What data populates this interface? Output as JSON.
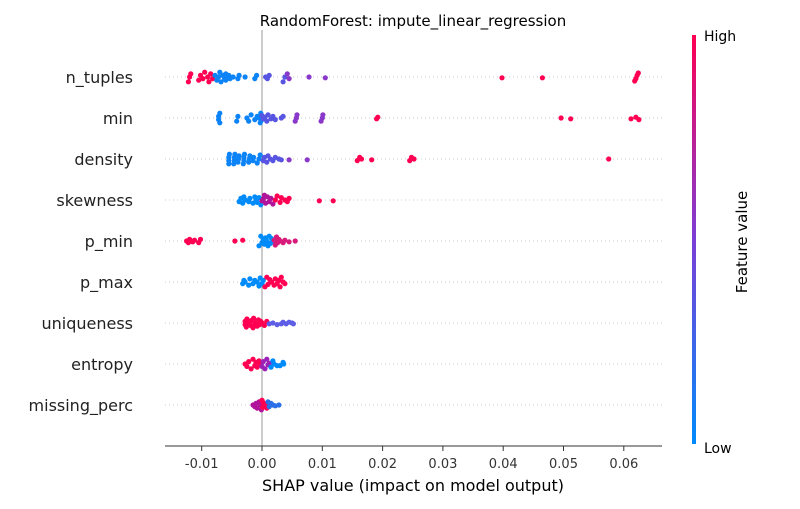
{
  "chart_data": {
    "type": "scatter",
    "title": "RandomForest: impute_linear_regression",
    "xlabel": "SHAP value (impact on model output)",
    "xlim": [
      -0.016,
      0.0665
    ],
    "xticks": [
      "-0.01",
      "0.00",
      "0.01",
      "0.02",
      "0.03",
      "0.04",
      "0.05",
      "0.06"
    ],
    "xtick_values": [
      -0.01,
      0.0,
      0.01,
      0.02,
      0.03,
      0.04,
      0.05,
      0.06
    ],
    "colorbar": {
      "title": "Feature value",
      "high_label": "High",
      "low_label": "Low",
      "high_color": "#ff0052",
      "low_color": "#008bfb"
    },
    "features": [
      {
        "name": "n_tuples",
        "points": [
          [
            -0.0122,
            0.3
          ],
          [
            -0.0118,
            -0.2
          ],
          [
            -0.012,
            0.0
          ],
          [
            -0.0105,
            0.2
          ],
          [
            -0.0102,
            -0.1
          ],
          [
            -0.0098,
            0.1
          ],
          [
            -0.0095,
            -0.3
          ],
          [
            -0.009,
            0.0
          ],
          [
            -0.0088,
            0.3
          ],
          [
            -0.0085,
            -0.2
          ],
          [
            -0.0082,
            0.1
          ],
          [
            -0.0078,
            -0.1
          ],
          [
            -0.0075,
            0.2
          ],
          [
            -0.0072,
            0.0
          ],
          [
            -0.007,
            -0.3
          ],
          [
            -0.0068,
            0.3
          ],
          [
            -0.0065,
            -0.1
          ],
          [
            -0.0062,
            0.1
          ],
          [
            -0.006,
            -0.2
          ],
          [
            -0.006,
            0.2
          ],
          [
            -0.0058,
            0.0
          ],
          [
            -0.0055,
            -0.1
          ],
          [
            -0.0053,
            0.1
          ],
          [
            -0.0048,
            0.0
          ],
          [
            -0.004,
            0.1
          ],
          [
            -0.0038,
            -0.1
          ],
          [
            -0.0028,
            0.0
          ],
          [
            -0.0012,
            0.1
          ],
          [
            -0.0009,
            -0.1
          ],
          [
            0.0006,
            0.0
          ],
          [
            0.0009,
            0.1
          ],
          [
            0.0012,
            -0.1
          ],
          [
            0.0035,
            0.3
          ],
          [
            0.0038,
            0.0
          ],
          [
            0.0042,
            -0.2
          ],
          [
            0.0045,
            0.1
          ],
          [
            0.0078,
            0.0
          ],
          [
            0.0105,
            0.05
          ],
          [
            0.0398,
            0.05
          ],
          [
            0.0465,
            0.05
          ],
          [
            0.0618,
            0.25
          ],
          [
            0.062,
            0.1
          ],
          [
            0.0622,
            -0.1
          ],
          [
            0.0624,
            -0.25
          ]
        ]
      },
      {
        "name": "min",
        "points": [
          [
            -0.0072,
            0.1
          ],
          [
            -0.0072,
            -0.1
          ],
          [
            -0.007,
            0.3
          ],
          [
            -0.007,
            -0.3
          ],
          [
            -0.0042,
            0.2
          ],
          [
            -0.004,
            -0.1
          ],
          [
            -0.0025,
            0.0
          ],
          [
            -0.0022,
            0.2
          ],
          [
            -0.0018,
            -0.2
          ],
          [
            -0.0012,
            0.1
          ],
          [
            -0.0008,
            -0.1
          ],
          [
            -0.0005,
            0.0
          ],
          [
            -0.0003,
            0.3
          ],
          [
            -0.0002,
            -0.3
          ],
          [
            -0.0001,
            0.15
          ],
          [
            0.0,
            -0.15
          ],
          [
            0.0002,
            0.05
          ],
          [
            0.0005,
            -0.05
          ],
          [
            0.0008,
            0.2
          ],
          [
            0.001,
            -0.2
          ],
          [
            0.0015,
            0.05
          ],
          [
            0.0018,
            -0.1
          ],
          [
            0.0022,
            0.1
          ],
          [
            0.0032,
            0.0
          ],
          [
            0.0035,
            -0.1
          ],
          [
            0.0055,
            0.2
          ],
          [
            0.0057,
            0.0
          ],
          [
            0.0058,
            -0.2
          ],
          [
            0.0098,
            0.2
          ],
          [
            0.01,
            0.0
          ],
          [
            0.0101,
            -0.2
          ],
          [
            0.019,
            0.05
          ],
          [
            0.0192,
            -0.05
          ],
          [
            0.0496,
            0.0
          ],
          [
            0.0512,
            0.05
          ],
          [
            0.0612,
            0.05
          ],
          [
            0.062,
            -0.05
          ],
          [
            0.0625,
            0.1
          ]
        ]
      },
      {
        "name": "density",
        "points": [
          [
            -0.0055,
            0.3
          ],
          [
            -0.0055,
            0.1
          ],
          [
            -0.0055,
            -0.1
          ],
          [
            -0.0054,
            -0.3
          ],
          [
            -0.0047,
            0.3
          ],
          [
            -0.0046,
            0.1
          ],
          [
            -0.0046,
            -0.1
          ],
          [
            -0.0045,
            -0.3
          ],
          [
            -0.004,
            0.2
          ],
          [
            -0.0039,
            0.0
          ],
          [
            -0.0038,
            -0.2
          ],
          [
            -0.0031,
            0.3
          ],
          [
            -0.003,
            0.1
          ],
          [
            -0.003,
            -0.1
          ],
          [
            -0.0029,
            -0.3
          ],
          [
            -0.0022,
            0.2
          ],
          [
            -0.0021,
            0.0
          ],
          [
            -0.002,
            -0.2
          ],
          [
            -0.0015,
            0.1
          ],
          [
            -0.0014,
            -0.1
          ],
          [
            -0.0008,
            0.25
          ],
          [
            -0.0005,
            0.0
          ],
          [
            -0.0003,
            -0.25
          ],
          [
            0.0002,
            0.1
          ],
          [
            0.0004,
            -0.1
          ],
          [
            0.0008,
            0.2
          ],
          [
            0.001,
            -0.2
          ],
          [
            0.0014,
            0.0
          ],
          [
            0.0018,
            0.1
          ],
          [
            0.0022,
            -0.1
          ],
          [
            0.0028,
            0.0
          ],
          [
            0.0032,
            0.05
          ],
          [
            0.0045,
            0.05
          ],
          [
            0.0075,
            0.05
          ],
          [
            0.0158,
            0.1
          ],
          [
            0.0162,
            -0.1
          ],
          [
            0.0165,
            0.0
          ],
          [
            0.0182,
            0.05
          ],
          [
            0.0245,
            0.1
          ],
          [
            0.0248,
            -0.1
          ],
          [
            0.0252,
            0.0
          ],
          [
            0.0575,
            0.0
          ]
        ]
      },
      {
        "name": "skewness",
        "points": [
          [
            -0.0038,
            0.1
          ],
          [
            -0.0035,
            -0.1
          ],
          [
            -0.0032,
            0.2
          ],
          [
            -0.003,
            -0.2
          ],
          [
            -0.0028,
            0.0
          ],
          [
            -0.0022,
            0.1
          ],
          [
            -0.002,
            -0.1
          ],
          [
            -0.0015,
            0.2
          ],
          [
            -0.0012,
            -0.2
          ],
          [
            -0.001,
            0.0
          ],
          [
            -0.0008,
            0.15
          ],
          [
            -0.0005,
            -0.15
          ],
          [
            -0.0002,
            0.3
          ],
          [
            0.0,
            0.05
          ],
          [
            0.0002,
            -0.05
          ],
          [
            0.0004,
            -0.3
          ],
          [
            0.0006,
            0.2
          ],
          [
            0.0009,
            -0.2
          ],
          [
            0.0012,
            0.1
          ],
          [
            0.0015,
            -0.1
          ],
          [
            0.0018,
            0.25
          ],
          [
            0.0022,
            0.0
          ],
          [
            0.0025,
            -0.25
          ],
          [
            0.003,
            0.15
          ],
          [
            0.0032,
            -0.15
          ],
          [
            0.0038,
            0.0
          ],
          [
            0.0042,
            0.1
          ],
          [
            0.0045,
            -0.1
          ],
          [
            0.0095,
            0.05
          ],
          [
            0.0118,
            0.05
          ]
        ]
      },
      {
        "name": "p_min",
        "points": [
          [
            -0.0125,
            0.0
          ],
          [
            -0.0122,
            0.1
          ],
          [
            -0.012,
            -0.1
          ],
          [
            -0.0115,
            0.05
          ],
          [
            -0.0112,
            -0.05
          ],
          [
            -0.0105,
            0.1
          ],
          [
            -0.0102,
            -0.1
          ],
          [
            -0.0045,
            0.0
          ],
          [
            -0.0032,
            -0.05
          ],
          [
            -0.0005,
            0.3
          ],
          [
            -0.0002,
            -0.3
          ],
          [
            0.0,
            0.1
          ],
          [
            0.0002,
            -0.1
          ],
          [
            0.0004,
            0.2
          ],
          [
            0.0006,
            -0.2
          ],
          [
            0.0008,
            0.0
          ],
          [
            0.001,
            0.3
          ],
          [
            0.0012,
            -0.3
          ],
          [
            0.0014,
            0.15
          ],
          [
            0.0016,
            -0.15
          ],
          [
            0.0018,
            0.05
          ],
          [
            0.002,
            -0.05
          ],
          [
            0.0022,
            0.25
          ],
          [
            0.0024,
            -0.25
          ],
          [
            0.0026,
            0.1
          ],
          [
            0.0028,
            -0.1
          ],
          [
            0.003,
            0.0
          ],
          [
            0.0035,
            0.1
          ],
          [
            0.0038,
            -0.05
          ],
          [
            0.0045,
            0.05
          ],
          [
            0.0055,
            0.0
          ]
        ]
      },
      {
        "name": "p_max",
        "points": [
          [
            -0.0032,
            0.1
          ],
          [
            -0.003,
            -0.1
          ],
          [
            -0.0028,
            0.0
          ],
          [
            -0.0022,
            0.2
          ],
          [
            -0.002,
            -0.2
          ],
          [
            -0.0015,
            0.1
          ],
          [
            -0.0012,
            -0.1
          ],
          [
            -0.0008,
            0.0
          ],
          [
            -0.0005,
            0.25
          ],
          [
            -0.0003,
            -0.25
          ],
          [
            0.0,
            0.1
          ],
          [
            0.0002,
            -0.1
          ],
          [
            0.0005,
            0.3
          ],
          [
            0.0008,
            -0.3
          ],
          [
            0.001,
            0.15
          ],
          [
            0.0013,
            -0.15
          ],
          [
            0.0016,
            0.0
          ],
          [
            0.002,
            0.2
          ],
          [
            0.0022,
            -0.2
          ],
          [
            0.0025,
            0.1
          ],
          [
            0.0028,
            -0.1
          ],
          [
            0.003,
            0.3
          ],
          [
            0.0032,
            -0.3
          ],
          [
            0.0035,
            0.0
          ],
          [
            0.0038,
            0.1
          ]
        ]
      },
      {
        "name": "uniqueness",
        "points": [
          [
            -0.0028,
            0.1
          ],
          [
            -0.0028,
            -0.1
          ],
          [
            -0.0026,
            0.25
          ],
          [
            -0.0025,
            -0.25
          ],
          [
            -0.0022,
            0.0
          ],
          [
            -0.0019,
            0.15
          ],
          [
            -0.0018,
            -0.15
          ],
          [
            -0.0015,
            0.3
          ],
          [
            -0.0014,
            -0.3
          ],
          [
            -0.0012,
            0.05
          ],
          [
            -0.001,
            -0.05
          ],
          [
            -0.0008,
            0.2
          ],
          [
            -0.0006,
            -0.2
          ],
          [
            -0.0004,
            0.1
          ],
          [
            -0.0002,
            -0.1
          ],
          [
            0.0,
            0.0
          ],
          [
            0.0004,
            0.15
          ],
          [
            0.0008,
            -0.1
          ],
          [
            0.0012,
            0.05
          ],
          [
            0.0018,
            0.0
          ],
          [
            0.0025,
            0.1
          ],
          [
            0.0032,
            0.05
          ],
          [
            0.0035,
            -0.05
          ],
          [
            0.004,
            0.05
          ],
          [
            0.0045,
            -0.05
          ],
          [
            0.005,
            0.0
          ],
          [
            0.0052,
            0.05
          ]
        ]
      },
      {
        "name": "entropy",
        "points": [
          [
            -0.0028,
            0.0
          ],
          [
            -0.0025,
            0.15
          ],
          [
            -0.0022,
            -0.15
          ],
          [
            -0.0018,
            0.3
          ],
          [
            -0.0015,
            -0.3
          ],
          [
            -0.0012,
            0.1
          ],
          [
            -0.001,
            -0.1
          ],
          [
            -0.0008,
            0.2
          ],
          [
            -0.0005,
            -0.2
          ],
          [
            -0.0003,
            0.0
          ],
          [
            0.0,
            0.15
          ],
          [
            0.0002,
            -0.15
          ],
          [
            0.0005,
            0.3
          ],
          [
            0.0008,
            -0.3
          ],
          [
            0.001,
            0.05
          ],
          [
            0.0012,
            -0.05
          ],
          [
            0.0015,
            0.2
          ],
          [
            0.0018,
            -0.2
          ],
          [
            0.002,
            0.0
          ],
          [
            0.0025,
            0.1
          ],
          [
            0.003,
            0.1
          ],
          [
            0.0035,
            -0.1
          ],
          [
            0.0036,
            0.0
          ]
        ]
      },
      {
        "name": "missing_perc",
        "points": [
          [
            -0.0015,
            0.0
          ],
          [
            -0.0012,
            0.1
          ],
          [
            -0.001,
            -0.1
          ],
          [
            -0.0008,
            0.2
          ],
          [
            -0.0005,
            -0.2
          ],
          [
            -0.0003,
            0.0
          ],
          [
            -0.0001,
            0.3
          ],
          [
            0.0,
            -0.3
          ],
          [
            0.0001,
            0.15
          ],
          [
            0.0002,
            -0.15
          ],
          [
            0.0004,
            0.05
          ],
          [
            0.0006,
            -0.05
          ],
          [
            0.0008,
            0.2
          ],
          [
            0.001,
            -0.2
          ],
          [
            0.0012,
            0.1
          ],
          [
            0.0015,
            -0.1
          ],
          [
            0.0018,
            0.0
          ],
          [
            0.0022,
            0.05
          ],
          [
            0.0028,
            0.0
          ]
        ]
      }
    ]
  }
}
